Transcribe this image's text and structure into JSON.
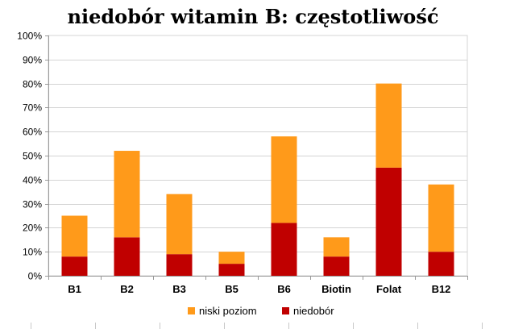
{
  "chart_data": {
    "type": "bar",
    "stacked": true,
    "title": "niedobór witamin B: częstotliwość",
    "categories": [
      "B1",
      "B2",
      "B3",
      "B5",
      "B6",
      "Biotin",
      "Folat",
      "B12"
    ],
    "series": [
      {
        "name": "niedobór",
        "color": "#c00000",
        "values": [
          8,
          16,
          9,
          5,
          22,
          8,
          45,
          10
        ]
      },
      {
        "name": "niski poziom",
        "color": "#ff9a1a",
        "values": [
          17,
          36,
          25,
          5,
          36,
          8,
          35,
          28
        ]
      }
    ],
    "yticks": [
      "0%",
      "10%",
      "20%",
      "30%",
      "40%",
      "50%",
      "60%",
      "70%",
      "80%",
      "90%",
      "100%"
    ],
    "ylim": [
      0,
      100
    ],
    "grid": true,
    "legend": {
      "position": "bottom",
      "entries": [
        "niski poziom",
        "niedobór"
      ]
    }
  }
}
